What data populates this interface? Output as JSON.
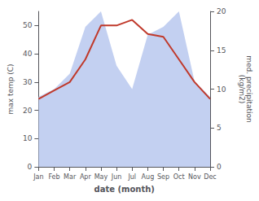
{
  "chart_data": {
    "type": "line",
    "categories": [
      "Jan",
      "Feb",
      "Mar",
      "Apr",
      "May",
      "Jun",
      "Jul",
      "Aug",
      "Sep",
      "Oct",
      "Nov",
      "Dec"
    ],
    "xlabel": "date (month)",
    "ylabel": "max temp (C)",
    "y2label": "med. precipitation\n(kg/m2)",
    "ylim": [
      0,
      55
    ],
    "yticks": [
      0,
      10,
      20,
      30,
      40,
      50
    ],
    "y2lim": [
      0,
      20
    ],
    "y2ticks": [
      0,
      5,
      10,
      15,
      20
    ],
    "grid": false,
    "series": [
      {
        "type": "area",
        "color": "#b8c8ee",
        "axis": "y2",
        "values": [
          9,
          10,
          12,
          18,
          20,
          13,
          10,
          17,
          18,
          20,
          11,
          9
        ]
      },
      {
        "type": "line",
        "color": "#c0392b",
        "values": [
          24,
          27,
          30,
          38,
          50,
          50,
          52,
          47,
          46,
          38,
          30,
          24
        ]
      }
    ]
  }
}
